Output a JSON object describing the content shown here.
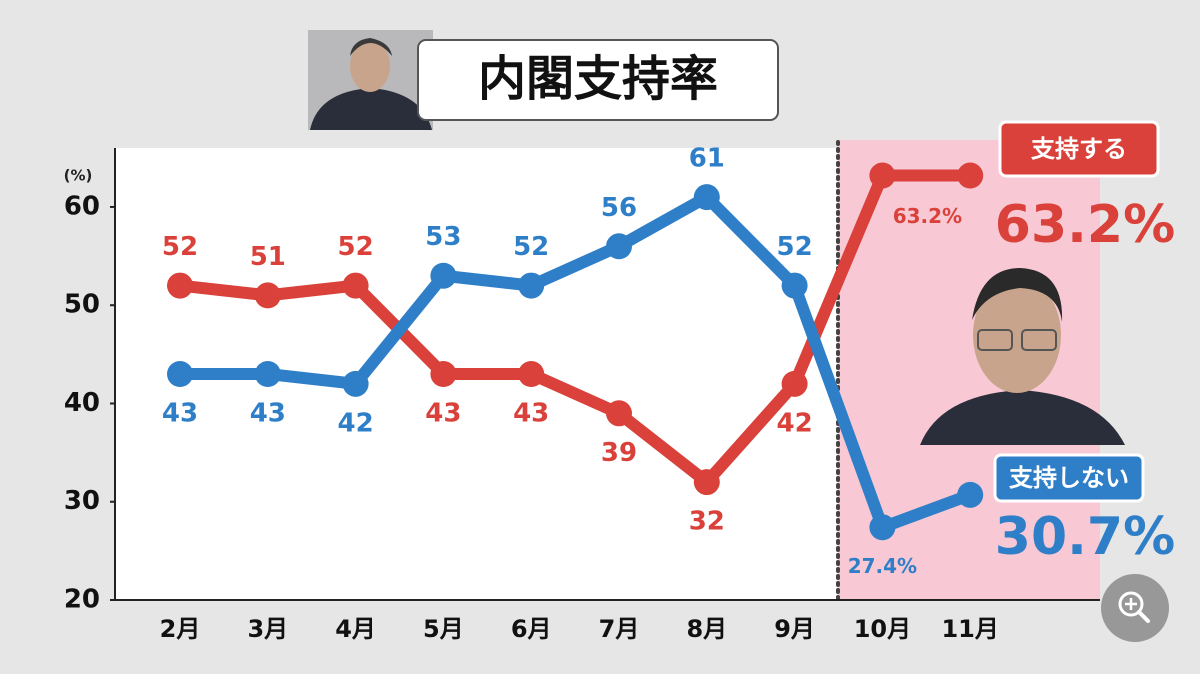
{
  "chart_data": {
    "type": "line",
    "title": "内閣支持率",
    "y_unit_label": "(%)",
    "categories": [
      "2月",
      "3月",
      "4月",
      "5月",
      "6月",
      "7月",
      "8月",
      "9月",
      "10月",
      "11月"
    ],
    "series": [
      {
        "name": "支持する",
        "color": "#d9413a",
        "values": [
          52,
          51,
          52,
          43,
          43,
          39,
          32,
          42,
          63.2,
          63.2
        ],
        "value_labels": [
          "52",
          "51",
          "52",
          "43",
          "43",
          "39",
          "32",
          "42",
          "63.2%",
          "63.2%"
        ]
      },
      {
        "name": "支持しない",
        "color": "#2f7fc8",
        "values": [
          43,
          43,
          42,
          53,
          52,
          56,
          61,
          52,
          27.4,
          30.7
        ],
        "value_labels": [
          "43",
          "43",
          "42",
          "53",
          "52",
          "56",
          "61",
          "52",
          "27.4%",
          "30.7%"
        ]
      }
    ],
    "ylim": [
      20,
      66
    ],
    "yticks": [
      20,
      30,
      40,
      50,
      60
    ],
    "grid": false
  }
}
